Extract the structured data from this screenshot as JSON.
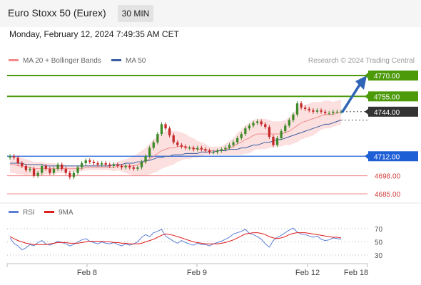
{
  "header": {
    "title": "Euro Stoxx 50 (Eurex)",
    "interval": "30 MIN"
  },
  "datetime": "Monday, February 12, 2024 7:49:35 AM CET",
  "legend": {
    "ma20": {
      "label": "MA 20 + Bollinger Bands",
      "color": "#f28c8c"
    },
    "ma50": {
      "label": "MA 50",
      "color": "#3a5fa0"
    },
    "rsi": {
      "label": "RSI",
      "color": "#5b7fd6"
    },
    "ma9": {
      "label": "9MA",
      "color": "#e01b1b"
    }
  },
  "credit": "Research © 2024 Trading Central",
  "chart_data": [
    {
      "type": "line",
      "series_style": "candlestick",
      "levels": [
        {
          "value": 4770.0,
          "label": "4770.00",
          "kind": "target",
          "color": "#4c9a0a"
        },
        {
          "value": 4755.0,
          "label": "4755.00",
          "kind": "target",
          "color": "#4c9a0a"
        },
        {
          "value": 4744.0,
          "label": "4744.00",
          "kind": "last",
          "color": "#333333"
        },
        {
          "value": 4712.0,
          "label": "4712.00",
          "kind": "pivot",
          "color": "#1f5fd6"
        },
        {
          "value": 4698.0,
          "label": "4698.00",
          "kind": "support",
          "color": "#ef8a8a"
        },
        {
          "value": 4685.0,
          "label": "4685.00",
          "kind": "support",
          "color": "#ef8a8a"
        }
      ],
      "x_ticks": [
        "Feb 8",
        "Feb 9",
        "Feb 12",
        "Feb 18"
      ],
      "price_range": [
        4680,
        4780
      ],
      "closes": [
        4712,
        4711,
        4707,
        4705,
        4702,
        4703,
        4698,
        4700,
        4705,
        4703,
        4700,
        4703,
        4706,
        4703,
        4700,
        4697,
        4700,
        4704,
        4707,
        4709,
        4708,
        4707,
        4706,
        4707,
        4706,
        4705,
        4706,
        4705,
        4704,
        4705,
        4704,
        4703,
        4704,
        4708,
        4712,
        4718,
        4722,
        4728,
        4735,
        4732,
        4727,
        4722,
        4720,
        4719,
        4718,
        4718,
        4717,
        4718,
        4717,
        4716,
        4715,
        4715,
        4716,
        4717,
        4718,
        4720,
        4722,
        4725,
        4728,
        4732,
        4734,
        4736,
        4737,
        4735,
        4733,
        4726,
        4720,
        4725,
        4730,
        4734,
        4738,
        4742,
        4750,
        4747,
        4746,
        4745,
        4744,
        4745,
        4744,
        4743,
        4743,
        4744,
        4744,
        4744
      ],
      "ma20": [
        4706,
        4706,
        4705,
        4705,
        4704,
        4704,
        4703,
        4703,
        4703,
        4703,
        4703,
        4703,
        4703,
        4703,
        4703,
        4703,
        4703,
        4703,
        4703,
        4704,
        4704,
        4704,
        4704,
        4704,
        4704,
        4704,
        4704,
        4705,
        4705,
        4705,
        4705,
        4705,
        4706,
        4707,
        4708,
        4710,
        4712,
        4714,
        4716,
        4717,
        4718,
        4718,
        4719,
        4719,
        4719,
        4718,
        4718,
        4717,
        4717,
        4717,
        4716,
        4716,
        4716,
        4716,
        4717,
        4718,
        4719,
        4721,
        4722,
        4724,
        4725,
        4727,
        4728,
        4728,
        4728,
        4728,
        4728,
        4728,
        4728,
        4729,
        4730,
        4732,
        4734,
        4736,
        4737,
        4738,
        4739,
        4740,
        4741,
        4742,
        4742,
        4742,
        4743,
        4744
      ],
      "ma50": [
        4707,
        4707,
        4707,
        4707,
        4706,
        4706,
        4706,
        4706,
        4706,
        4705,
        4705,
        4705,
        4705,
        4705,
        4705,
        4705,
        4705,
        4705,
        4705,
        4705,
        4705,
        4705,
        4705,
        4705,
        4705,
        4705,
        4706,
        4706,
        4706,
        4707,
        4707,
        4707,
        4708,
        4708,
        4709,
        4709,
        4710,
        4711,
        4711,
        4712,
        4712,
        4713,
        4713,
        4713,
        4714,
        4714,
        4714,
        4714,
        4715,
        4715,
        4715,
        4715,
        4716,
        4716,
        4716,
        4717,
        4717,
        4717,
        4718,
        4718,
        4719,
        4720,
        4720,
        4721,
        4722,
        4722,
        4723,
        4724,
        4724,
        4725,
        4726,
        4727,
        4728,
        4729,
        4730,
        4731,
        4732,
        4733,
        4734,
        4735,
        4735,
        4736,
        4737,
        4738
      ],
      "bollinger_halfwidth": [
        6,
        6,
        6,
        6,
        6,
        5,
        5,
        5,
        5,
        4,
        4,
        4,
        3,
        3,
        3,
        2,
        2,
        2,
        2,
        2,
        2,
        2,
        2,
        2,
        2,
        2,
        3,
        3,
        4,
        5,
        6,
        7,
        8,
        9,
        10,
        11,
        12,
        13,
        13,
        13,
        13,
        12,
        11,
        10,
        9,
        8,
        7,
        6,
        5,
        4,
        3,
        3,
        3,
        3,
        4,
        5,
        6,
        8,
        9,
        10,
        11,
        11,
        11,
        11,
        11,
        10,
        9,
        9,
        9,
        9,
        10,
        11,
        12,
        12,
        12,
        12,
        12,
        11,
        10,
        10,
        10,
        9,
        9,
        9
      ]
    },
    {
      "type": "line",
      "y_ticks": [
        "70",
        "50",
        "30"
      ],
      "levels": [
        70,
        50,
        30
      ],
      "rsi": [
        56,
        48,
        44,
        38,
        41,
        46,
        44,
        49,
        52,
        47,
        45,
        48,
        51,
        49,
        47,
        44,
        46,
        50,
        53,
        55,
        51,
        49,
        47,
        50,
        48,
        47,
        49,
        46,
        44,
        47,
        45,
        47,
        50,
        57,
        61,
        58,
        64,
        66,
        69,
        59,
        55,
        51,
        48,
        52,
        49,
        47,
        45,
        48,
        46,
        46,
        44,
        47,
        49,
        51,
        54,
        57,
        62,
        64,
        66,
        69,
        63,
        61,
        58,
        54,
        47,
        42,
        52,
        57,
        60,
        64,
        68,
        71,
        65,
        62,
        61,
        59,
        57,
        59,
        54,
        52,
        53,
        56,
        55,
        54
      ],
      "ma9": [
        58,
        55,
        52,
        50,
        48,
        47,
        46,
        46,
        46,
        46,
        47,
        48,
        49,
        49,
        49,
        48,
        48,
        48,
        49,
        50,
        51,
        51,
        51,
        51,
        50,
        50,
        49,
        49,
        48,
        48,
        47,
        47,
        47,
        48,
        50,
        52,
        54,
        57,
        60,
        62,
        61,
        60,
        58,
        56,
        54,
        52,
        50,
        49,
        48,
        47,
        47,
        47,
        47,
        48,
        49,
        51,
        53,
        56,
        59,
        62,
        63,
        64,
        64,
        63,
        61,
        58,
        56,
        55,
        56,
        58,
        61,
        63,
        64,
        64,
        64,
        63,
        62,
        61,
        60,
        59,
        58,
        57,
        57,
        56
      ]
    }
  ]
}
